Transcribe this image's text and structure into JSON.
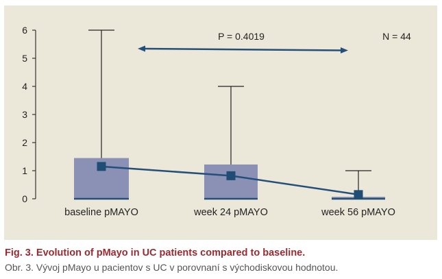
{
  "chart_data": {
    "type": "box",
    "categories": [
      "baseline pMAYO",
      "week 24 pMAYO",
      "week 56 pMAYO"
    ],
    "boxes": [
      {
        "q1": 0,
        "q3": 1.45,
        "min": 0,
        "max": 6
      },
      {
        "q1": 0,
        "q3": 1.22,
        "min": 0,
        "max": 4
      },
      {
        "q1": 0,
        "q3": 0.07,
        "min": 0,
        "max": 1
      }
    ],
    "series": [
      {
        "values": [
          1.15,
          0.82,
          0.15
        ]
      }
    ],
    "ylim": [
      0,
      6
    ],
    "yticks": [
      0,
      1,
      2,
      3,
      4,
      5,
      6
    ],
    "annotations": {
      "p_value": "P = 0.4019",
      "n": "N = 44"
    },
    "colors": {
      "box_fill": "#8b91b5",
      "line": "#234f79",
      "marker": "#1f4d74",
      "whisker": "#222222",
      "panel_bg": "#ebe8da"
    }
  },
  "caption": {
    "en": "Fig. 3. Evolution of pMayo in UC patients compared to baseline.",
    "sk": "Obr. 3. Vývoj pMayo u pacientov s UC v porovnaní s východiskovou hodnotou."
  }
}
